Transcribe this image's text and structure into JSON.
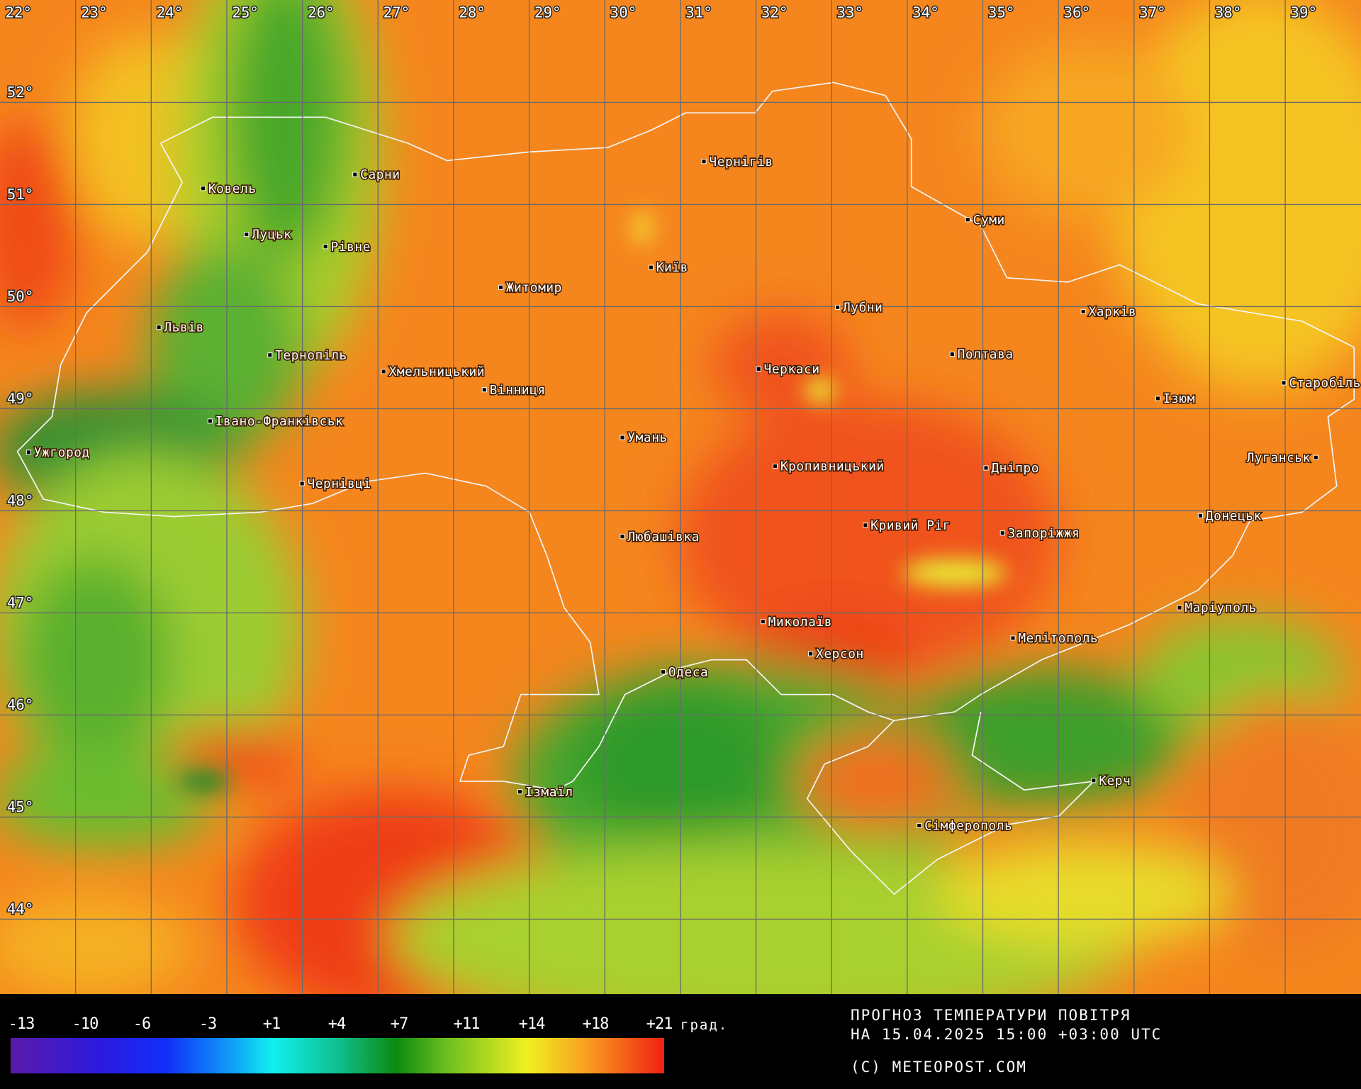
{
  "map": {
    "longitude_labels": [
      "22°",
      "23°",
      "24°",
      "25°",
      "26°",
      "27°",
      "28°",
      "29°",
      "30°",
      "31°",
      "32°",
      "33°",
      "34°",
      "35°",
      "36°",
      "37°",
      "38°",
      "39°"
    ],
    "latitude_labels": [
      "52°",
      "51°",
      "50°",
      "49°",
      "48°",
      "47°",
      "46°",
      "45°",
      "44°"
    ],
    "cities": [
      "Ковель",
      "Сарни",
      "Луцьк",
      "Рівне",
      "Житомир",
      "Київ",
      "Чернігів",
      "Суми",
      "Львів",
      "Тернопіль",
      "Хмельницький",
      "Вінниця",
      "Черкаси",
      "Лубни",
      "Полтава",
      "Харків",
      "Ізюм",
      "Старобільськ",
      "Івано-Франківськ",
      "Ужгород",
      "Умань",
      "Кропивницький",
      "Дніпро",
      "Луганськ",
      "Чернівці",
      "Кривий Ріг",
      "Запоріжжя",
      "Любашівка",
      "Донецьк",
      "Маріуполь",
      "Миколаїв",
      "Херсон",
      "Мелітополь",
      "Одеса",
      "Ізмаїл",
      "Керч",
      "Сімферополь"
    ]
  },
  "legend": {
    "ticks": [
      "-13",
      "-10",
      "-6",
      "-3",
      "+1",
      "+4",
      "+7",
      "+11",
      "+14",
      "+18",
      "+21"
    ],
    "unit": "град.",
    "colors": [
      "#5a1aa8",
      "#1030f8",
      "#10f0f0",
      "#0a8a10",
      "#f0f020",
      "#f8a020",
      "#f02010"
    ]
  },
  "footer": {
    "title": "ПРОГНОЗ ТЕМПЕРАТУРИ ПОВІТРЯ",
    "datetime": "НА 15.04.2025 15:00 +03:00 UTC",
    "copyright": "(C) METEOPOST.COM"
  }
}
